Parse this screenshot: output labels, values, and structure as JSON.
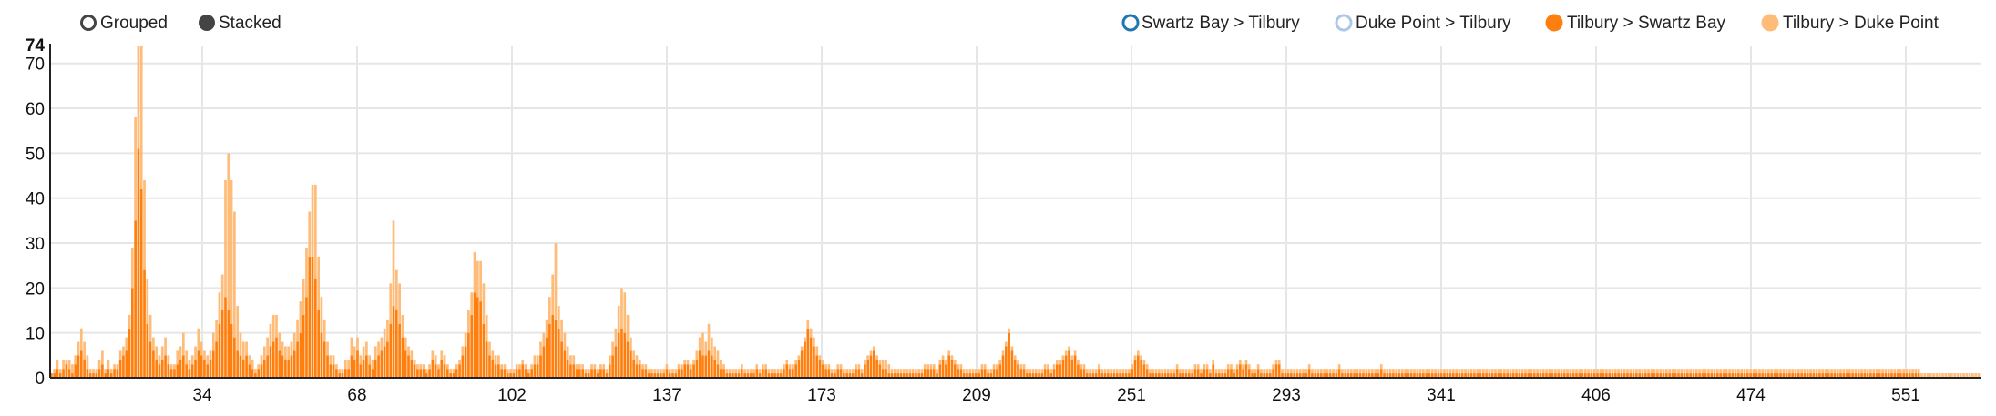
{
  "controls": {
    "grouped_label": "Grouped",
    "stacked_label": "Stacked",
    "selected": "Stacked"
  },
  "chart_data": {
    "type": "bar",
    "stacked": true,
    "x_ticks": [
      "34",
      "68",
      "102",
      "137",
      "173",
      "209",
      "251",
      "293",
      "341",
      "406",
      "474",
      "551"
    ],
    "y_ticks": [
      0,
      10,
      20,
      30,
      40,
      50,
      60,
      70
    ],
    "y_max_label": "74",
    "ylim": [
      0,
      74
    ],
    "grid": true,
    "legend_position": "top-right",
    "series": [
      {
        "name": "Swartz Bay > Tilbury",
        "color": "#1f77b4",
        "style": "hollow",
        "active": false,
        "values": []
      },
      {
        "name": "Duke Point > Tilbury",
        "color": "#aec7e8",
        "style": "hollow",
        "active": false,
        "values": []
      },
      {
        "name": "Tilbury > Swartz Bay",
        "color": "#ff7f0e",
        "style": "filled",
        "active": true,
        "values": [
          1,
          1,
          2,
          1,
          2,
          3,
          2,
          1,
          3,
          5,
          6,
          4,
          2,
          1,
          1,
          1,
          2,
          3,
          1,
          2,
          1,
          2,
          2,
          4,
          5,
          6,
          11,
          20,
          35,
          51,
          42,
          24,
          12,
          8,
          6,
          4,
          3,
          4,
          5,
          3,
          2,
          2,
          3,
          4,
          5,
          3,
          2,
          3,
          4,
          6,
          5,
          4,
          3,
          4,
          6,
          8,
          12,
          15,
          18,
          15,
          12,
          9,
          6,
          5,
          4,
          5,
          3,
          2,
          1,
          2,
          3,
          4,
          5,
          7,
          8,
          9,
          6,
          5,
          4,
          4,
          5,
          6,
          8,
          10,
          14,
          18,
          27,
          27,
          22,
          15,
          10,
          8,
          5,
          3,
          3,
          2,
          1,
          1,
          2,
          2,
          5,
          4,
          6,
          3,
          4,
          5,
          3,
          2,
          4,
          5,
          6,
          7,
          8,
          12,
          16,
          15,
          12,
          9,
          6,
          5,
          4,
          3,
          2,
          2,
          2,
          1,
          2,
          4,
          3,
          2,
          4,
          3,
          2,
          1,
          1,
          2,
          3,
          5,
          7,
          10,
          14,
          19,
          18,
          17,
          12,
          8,
          5,
          4,
          3,
          3,
          2,
          2,
          1,
          1,
          1,
          2,
          2,
          3,
          2,
          1,
          2,
          3,
          3,
          5,
          7,
          9,
          12,
          14,
          13,
          11,
          8,
          6,
          4,
          3,
          3,
          2,
          2,
          2,
          1,
          1,
          2,
          2,
          1,
          2,
          2,
          1,
          3,
          5,
          7,
          10,
          11,
          10,
          8,
          6,
          4,
          3,
          3,
          2,
          2,
          1,
          1,
          1,
          1,
          1,
          1,
          2,
          1,
          1,
          1,
          2,
          2,
          3,
          3,
          2,
          3,
          4,
          6,
          5,
          5,
          6,
          5,
          4,
          3,
          2,
          2,
          1,
          1,
          1,
          1,
          1,
          2,
          1,
          1,
          1,
          1,
          2,
          1,
          2,
          2,
          1,
          1,
          1,
          1,
          1,
          2,
          3,
          2,
          2,
          3,
          4,
          6,
          8,
          11,
          9,
          7,
          5,
          4,
          3,
          2,
          2,
          1,
          1,
          2,
          2,
          1,
          1,
          1,
          1,
          2,
          2,
          1,
          3,
          4,
          5,
          6,
          4,
          3,
          2,
          2,
          1,
          1,
          1,
          1,
          1,
          1,
          1,
          1,
          1,
          1,
          1,
          1,
          2,
          2,
          2,
          2,
          1,
          3,
          4,
          3,
          5,
          4,
          3,
          2,
          2,
          1,
          1,
          1,
          1,
          1,
          1,
          2,
          2,
          1,
          1,
          2,
          2,
          3,
          5,
          7,
          10,
          6,
          4,
          3,
          2,
          2,
          1,
          1,
          1,
          1,
          1,
          1,
          2,
          2,
          1,
          2,
          3,
          3,
          4,
          5,
          6,
          4,
          5,
          3,
          2,
          2,
          1,
          1,
          1,
          1,
          2,
          1,
          1,
          1,
          1,
          1,
          1,
          1,
          1,
          1,
          1,
          2,
          4,
          5,
          4,
          3,
          2,
          1,
          1,
          1,
          1,
          1,
          1,
          1,
          1,
          1,
          2,
          1,
          1,
          1,
          1,
          1,
          2,
          2,
          1,
          2,
          2,
          1,
          3,
          1,
          1,
          1,
          1,
          2,
          2,
          1,
          2,
          3,
          2,
          3,
          2,
          1,
          1,
          2,
          1,
          1,
          1,
          1,
          2,
          3,
          3,
          1,
          1,
          1,
          1,
          1,
          1,
          1,
          1,
          1,
          2,
          1,
          1,
          1,
          1,
          1,
          1,
          1,
          1,
          1,
          2,
          1,
          1,
          1,
          1,
          1,
          1,
          1,
          1,
          1,
          1,
          1,
          1,
          1,
          2,
          1,
          1,
          1,
          1,
          1,
          1,
          1,
          1,
          1,
          1,
          1,
          1,
          1,
          1,
          1,
          1,
          1,
          1,
          1,
          1,
          1,
          1,
          1,
          1,
          1,
          1,
          1,
          1,
          1,
          1,
          1,
          1,
          1,
          1,
          1,
          1,
          1,
          1,
          1,
          1,
          1,
          1,
          1,
          1,
          1,
          1,
          1,
          1,
          1,
          1,
          1,
          1,
          1,
          1,
          1,
          1,
          1,
          1,
          1,
          1,
          1,
          1,
          1,
          1,
          1,
          1,
          1,
          1,
          1,
          1,
          1,
          1,
          1,
          1,
          1,
          1,
          1,
          1,
          1,
          1,
          1,
          1,
          1,
          1,
          1,
          1,
          1,
          1,
          1,
          1,
          1,
          1,
          1,
          1,
          1,
          1,
          1,
          1,
          1,
          1,
          1,
          1,
          1,
          1,
          1,
          1,
          1,
          1,
          1,
          1,
          1,
          1,
          1,
          1,
          1,
          1,
          1,
          1,
          1,
          1,
          1,
          1,
          1,
          1,
          1,
          1,
          1,
          1,
          1,
          1,
          1,
          1,
          1,
          1,
          1,
          1,
          1,
          1,
          1,
          1,
          1,
          1,
          1,
          1,
          1,
          1,
          1,
          1,
          1,
          1,
          1,
          1,
          1,
          1,
          1,
          1,
          1,
          1,
          1,
          1,
          1,
          1,
          1,
          1,
          1,
          1,
          1,
          1,
          1,
          1,
          1,
          1,
          1,
          1,
          1,
          1,
          1,
          1,
          1
        ]
      },
      {
        "name": "Tilbury > Duke Point",
        "color": "#ffbb78",
        "style": "filled",
        "active": true,
        "values": [
          0,
          1,
          2,
          1,
          2,
          1,
          2,
          2,
          2,
          3,
          5,
          4,
          3,
          1,
          1,
          1,
          2,
          3,
          1,
          2,
          1,
          1,
          1,
          2,
          2,
          3,
          3,
          9,
          23,
          23,
          32,
          20,
          10,
          6,
          3,
          3,
          2,
          3,
          4,
          2,
          1,
          1,
          3,
          3,
          5,
          3,
          2,
          2,
          3,
          5,
          3,
          2,
          2,
          2,
          4,
          5,
          7,
          8,
          26,
          35,
          32,
          28,
          10,
          5,
          4,
          3,
          2,
          2,
          1,
          1,
          2,
          3,
          4,
          5,
          6,
          5,
          4,
          3,
          3,
          3,
          3,
          4,
          5,
          7,
          8,
          11,
          10,
          16,
          21,
          12,
          8,
          5,
          3,
          2,
          2,
          1,
          1,
          1,
          2,
          2,
          4,
          3,
          3,
          2,
          3,
          3,
          2,
          2,
          3,
          3,
          3,
          4,
          5,
          9,
          19,
          9,
          9,
          5,
          3,
          2,
          2,
          1,
          1,
          1,
          1,
          1,
          1,
          2,
          2,
          1,
          2,
          2,
          1,
          1,
          1,
          1,
          1,
          2,
          3,
          5,
          5,
          9,
          8,
          9,
          9,
          6,
          3,
          2,
          2,
          2,
          1,
          1,
          1,
          1,
          1,
          1,
          1,
          1,
          1,
          1,
          1,
          2,
          2,
          3,
          3,
          4,
          6,
          9,
          17,
          5,
          5,
          4,
          3,
          2,
          2,
          1,
          1,
          1,
          1,
          1,
          1,
          1,
          1,
          1,
          1,
          1,
          2,
          3,
          4,
          6,
          9,
          9,
          6,
          3,
          2,
          2,
          1,
          1,
          1,
          1,
          1,
          1,
          1,
          1,
          1,
          1,
          1,
          1,
          1,
          1,
          1,
          1,
          1,
          1,
          1,
          2,
          3,
          5,
          3,
          6,
          4,
          3,
          3,
          2,
          1,
          1,
          1,
          1,
          1,
          1,
          1,
          1,
          1,
          1,
          1,
          1,
          1,
          1,
          1,
          1,
          1,
          1,
          1,
          1,
          1,
          1,
          1,
          1,
          1,
          1,
          1,
          1,
          2,
          2,
          2,
          2,
          1,
          1,
          1,
          1,
          1,
          1,
          1,
          1,
          1,
          1,
          1,
          1,
          1,
          1,
          1,
          1,
          1,
          1,
          1,
          1,
          1,
          2,
          2,
          2,
          1,
          1,
          1,
          1,
          1,
          1,
          1,
          1,
          1,
          1,
          1,
          1,
          1,
          1,
          1,
          1,
          1,
          1,
          1,
          1,
          1,
          1,
          1,
          1,
          1,
          1,
          1,
          1,
          1,
          1,
          1,
          1,
          1,
          1,
          1,
          1,
          1,
          1,
          1,
          1,
          1,
          1,
          1,
          1,
          1,
          1,
          1,
          1,
          1,
          1,
          1,
          1,
          1,
          1,
          1,
          1,
          1,
          1,
          1,
          1,
          1,
          1,
          1,
          1,
          1,
          1,
          1,
          1,
          1,
          1,
          1,
          1,
          1,
          1,
          1,
          1,
          1,
          1,
          1,
          1,
          1,
          1,
          1,
          1,
          1,
          1,
          1,
          1,
          1,
          1,
          1,
          1,
          1,
          1,
          1,
          1,
          1,
          1,
          1,
          1,
          1,
          1,
          1,
          1,
          1,
          1,
          1,
          1,
          1,
          1,
          1,
          1,
          1,
          1,
          1,
          1,
          1,
          1,
          1,
          1,
          1,
          1,
          1,
          1,
          1,
          1,
          1,
          1,
          1,
          1,
          1,
          1,
          1,
          1,
          1,
          1,
          1,
          1,
          1,
          1,
          1,
          1,
          1,
          1,
          1,
          1,
          1,
          1,
          1,
          1,
          1,
          1,
          1,
          1,
          1,
          1,
          1,
          1,
          1,
          1,
          1,
          1,
          1,
          1,
          1,
          1,
          1,
          1,
          1,
          1,
          1,
          1,
          1,
          1,
          1,
          1,
          1,
          1,
          1,
          1,
          1,
          1,
          1,
          1,
          1,
          1,
          1,
          1,
          1,
          1,
          1,
          1,
          1,
          1,
          1,
          1,
          1,
          1,
          1,
          1,
          1,
          1,
          1,
          1,
          1,
          1,
          1,
          1,
          1,
          1,
          1,
          1,
          1,
          1,
          1,
          1,
          1,
          1,
          1,
          1,
          1,
          1,
          1,
          1,
          1,
          1,
          1,
          1,
          1,
          1,
          1,
          1,
          1,
          1,
          1,
          1,
          1,
          1,
          1,
          1,
          1,
          1,
          1,
          1,
          1,
          1,
          1,
          1,
          1,
          1,
          1,
          1,
          1,
          1,
          1,
          1,
          1,
          1,
          1,
          1,
          1,
          1,
          1,
          1,
          1,
          1,
          1,
          1,
          1,
          1,
          1,
          1,
          1,
          1,
          1,
          1,
          1,
          1,
          1,
          1,
          1,
          1,
          1,
          1,
          1,
          1,
          1,
          1,
          1,
          1,
          1,
          1,
          1,
          1,
          1,
          1,
          1,
          1,
          1,
          1,
          1,
          1,
          1,
          1,
          1,
          1,
          1,
          1,
          1,
          1,
          1,
          1,
          1,
          1,
          1,
          1,
          1,
          1,
          1,
          1,
          1,
          1,
          1,
          1,
          1,
          1,
          1,
          1,
          1,
          1,
          1,
          1,
          1,
          1,
          1,
          1,
          1,
          1,
          1,
          1,
          1,
          1,
          1,
          1,
          1,
          1,
          1,
          1,
          1,
          1,
          1,
          1,
          1,
          1,
          1,
          1,
          1,
          1,
          1,
          1,
          1,
          1,
          1
        ]
      }
    ]
  }
}
